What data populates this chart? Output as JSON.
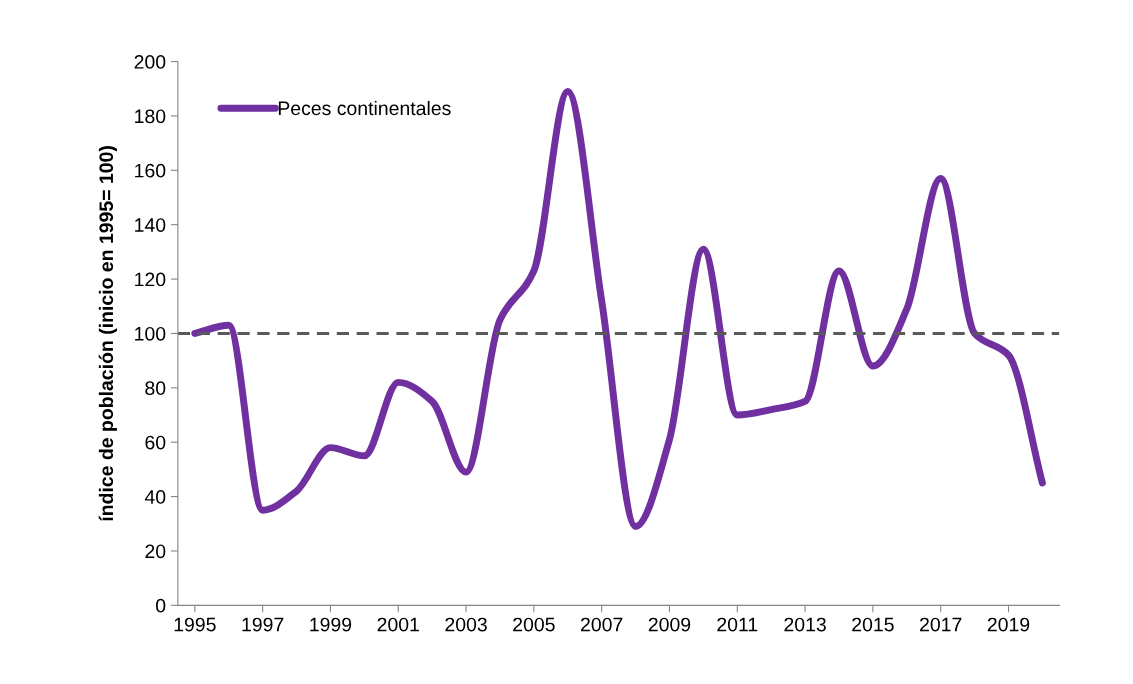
{
  "chart_data": {
    "type": "line",
    "ylabel": "índice de población (inicio en 1995= 100)",
    "x": [
      1995,
      1996,
      1997,
      1998,
      1999,
      2000,
      2001,
      2002,
      2003,
      2004,
      2005,
      2006,
      2007,
      2008,
      2009,
      2010,
      2011,
      2012,
      2013,
      2014,
      2015,
      2016,
      2017,
      2018,
      2019,
      2020
    ],
    "series": [
      {
        "name": "Peces continentales",
        "color": "#7030a0",
        "values": [
          100,
          103,
          35,
          42,
          58,
          55,
          82,
          75,
          49,
          105,
          123,
          189,
          112,
          29,
          61,
          131,
          70,
          72,
          75,
          123,
          88,
          109,
          157,
          100,
          92,
          45
        ]
      }
    ],
    "xlim": [
      1994.5,
      2020.5
    ],
    "xticks": [
      1995,
      1997,
      1999,
      2001,
      2003,
      2005,
      2007,
      2009,
      2011,
      2013,
      2015,
      2017,
      2019
    ],
    "ylim": [
      0,
      200
    ],
    "yticks": [
      0,
      20,
      40,
      60,
      80,
      100,
      120,
      140,
      160,
      180,
      200
    ],
    "ref_lines": [
      {
        "axis": "y",
        "value": 100,
        "color": "#595959",
        "line_style": "dashed"
      }
    ],
    "grid": false,
    "legend": "top left",
    "marker": "none",
    "line_style": "solid"
  }
}
